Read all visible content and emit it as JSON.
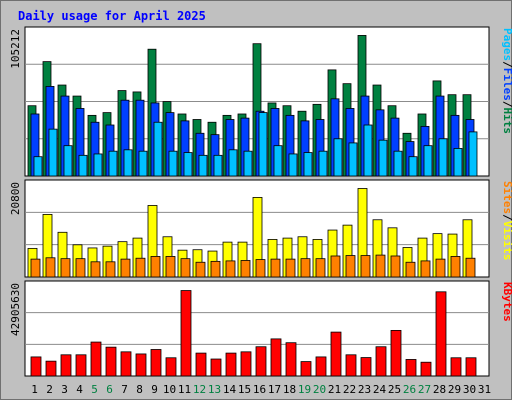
{
  "chart_data": {
    "type": "bar",
    "title": "Daily usage for April 2025",
    "categories": [
      "1",
      "2",
      "3",
      "4",
      "5",
      "6",
      "7",
      "8",
      "9",
      "10",
      "11",
      "12",
      "13",
      "14",
      "15",
      "16",
      "17",
      "18",
      "19",
      "20",
      "21",
      "22",
      "23",
      "24",
      "25",
      "26",
      "27",
      "28",
      "29",
      "30",
      "31"
    ],
    "weekend_days": [
      "5",
      "6",
      "12",
      "13",
      "19",
      "20",
      "26",
      "27"
    ],
    "colors": {
      "background": "#c0c0c0",
      "plot_background": "#ffffff",
      "grid": "#8c8c8c",
      "title": "#0000ff",
      "hits": "#008040",
      "files": "#0040ff",
      "pages": "#00c0ff",
      "visits": "#ffff00",
      "sites": "#ff8000",
      "kbytes": "#ff0000",
      "weekday_label": "#000000",
      "weekend_label": "#008040",
      "separator": "#000000"
    },
    "panels": [
      {
        "id": "hits-files-pages",
        "max_label": "105212",
        "ylim": [
          0,
          105212
        ],
        "series": [
          {
            "name": "Hits",
            "color": "#008040",
            "values": [
              51000,
              83000,
              66000,
              58000,
              44000,
              46000,
              62000,
              61000,
              92000,
              54000,
              45000,
              41000,
              39000,
              44000,
              45000,
              96000,
              53000,
              51000,
              47000,
              52000,
              77000,
              67000,
              102000,
              66000,
              51000,
              31000,
              45000,
              69000,
              59000,
              59000,
              0
            ]
          },
          {
            "name": "Files",
            "color": "#0040ff",
            "values": [
              45000,
              65000,
              58000,
              49000,
              39000,
              37000,
              55000,
              55000,
              53000,
              46000,
              40000,
              31000,
              30000,
              41000,
              42000,
              47000,
              49000,
              44000,
              40000,
              41000,
              56000,
              49000,
              58000,
              48000,
              42000,
              25000,
              36000,
              58000,
              44000,
              41000,
              0
            ]
          },
          {
            "name": "Pages",
            "color": "#00c0ff",
            "values": [
              14000,
              34000,
              22000,
              15000,
              16000,
              18000,
              19000,
              18000,
              39000,
              18000,
              17000,
              15000,
              15000,
              19000,
              18000,
              46000,
              22000,
              16000,
              17000,
              18000,
              27000,
              24000,
              37000,
              26000,
              18000,
              14000,
              22000,
              27000,
              20000,
              32000,
              0
            ]
          }
        ]
      },
      {
        "id": "visits-sites",
        "max_label": "20800",
        "ylim": [
          0,
          20800
        ],
        "series": [
          {
            "name": "Visits",
            "color": "#ffff00",
            "values": [
              6400,
              14000,
              10000,
              7200,
              6500,
              6900,
              7900,
              8700,
              16000,
              9000,
              6000,
              6100,
              5800,
              7800,
              7800,
              17800,
              8400,
              8700,
              9000,
              8400,
              10500,
              11600,
              19800,
              12800,
              11000,
              6600,
              8700,
              9700,
              9600,
              12800,
              0
            ]
          },
          {
            "name": "Sites",
            "color": "#ff8000",
            "values": [
              4000,
              4300,
              4100,
              4100,
              3400,
              3400,
              4000,
              4200,
              4600,
              4600,
              4100,
              3300,
              3500,
              3600,
              3700,
              3900,
              4000,
              4000,
              4100,
              4100,
              4700,
              4800,
              4800,
              4900,
              4700,
              3300,
              3600,
              4000,
              4600,
              4200,
              0
            ]
          }
        ]
      },
      {
        "id": "kbytes",
        "max_label": "42905630",
        "ylim": [
          0,
          42905630
        ],
        "series": [
          {
            "name": "KBytes",
            "color": "#ff0000",
            "values": [
              9000000,
              7000000,
              10000000,
              10000000,
              16000000,
              13600000,
              11400000,
              10400000,
              12500000,
              8600000,
              40300000,
              10800000,
              8000000,
              10800000,
              11400000,
              13800000,
              17500000,
              15700000,
              6800000,
              9000000,
              20700000,
              10000000,
              8700000,
              13800000,
              21500000,
              7800000,
              6500000,
              39700000,
              8600000,
              8600000,
              0
            ]
          }
        ]
      }
    ],
    "legend": [
      {
        "panel": 0,
        "parts": [
          {
            "text": "Pages",
            "color": "#00c0ff"
          },
          {
            "text": "/",
            "color": "#000000"
          },
          {
            "text": "Files",
            "color": "#0040ff"
          },
          {
            "text": "/",
            "color": "#000000"
          },
          {
            "text": "Hits",
            "color": "#008040"
          }
        ]
      },
      {
        "panel": 1,
        "parts": [
          {
            "text": "Sites",
            "color": "#ff8000"
          },
          {
            "text": "/",
            "color": "#000000"
          },
          {
            "text": "Visits",
            "color": "#ffff00"
          }
        ]
      },
      {
        "panel": 2,
        "parts": [
          {
            "text": "KBytes",
            "color": "#ff0000"
          }
        ]
      }
    ]
  }
}
